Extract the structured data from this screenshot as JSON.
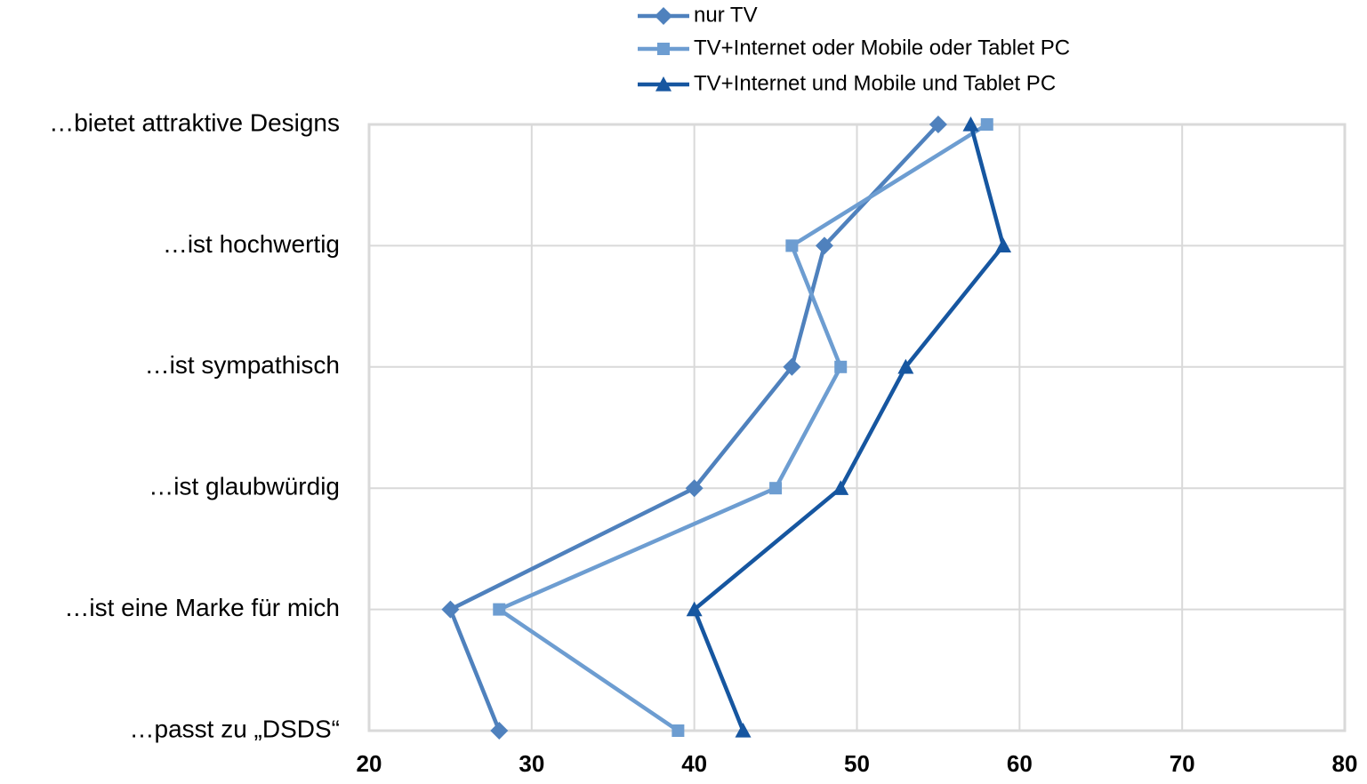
{
  "chart_data": {
    "type": "line",
    "orientation": "horizontal",
    "categories": [
      "…bietet attraktive Designs",
      "…ist hochwertig",
      "…ist sympathisch",
      "…ist glaubwürdig",
      "…ist eine Marke für mich",
      "…passt zu „DSDS“"
    ],
    "series": [
      {
        "name": "nur TV",
        "marker": "diamond",
        "color": "#4f81bd",
        "values": [
          55,
          48,
          46,
          40,
          25,
          28
        ]
      },
      {
        "name": "TV+Internet oder Mobile oder Tablet PC",
        "marker": "square",
        "color": "#6d9dd1",
        "values": [
          58,
          46,
          49,
          45,
          28,
          39
        ]
      },
      {
        "name": "TV+Internet und Mobile und Tablet PC",
        "marker": "triangle",
        "color": "#1656a0",
        "values": [
          57,
          59,
          53,
          49,
          40,
          43
        ]
      }
    ],
    "xlim": [
      20,
      80
    ],
    "xticks": [
      20,
      30,
      40,
      50,
      60,
      70,
      80
    ],
    "grid": true,
    "legend_position": "top",
    "title": "",
    "xlabel": "",
    "ylabel": ""
  }
}
